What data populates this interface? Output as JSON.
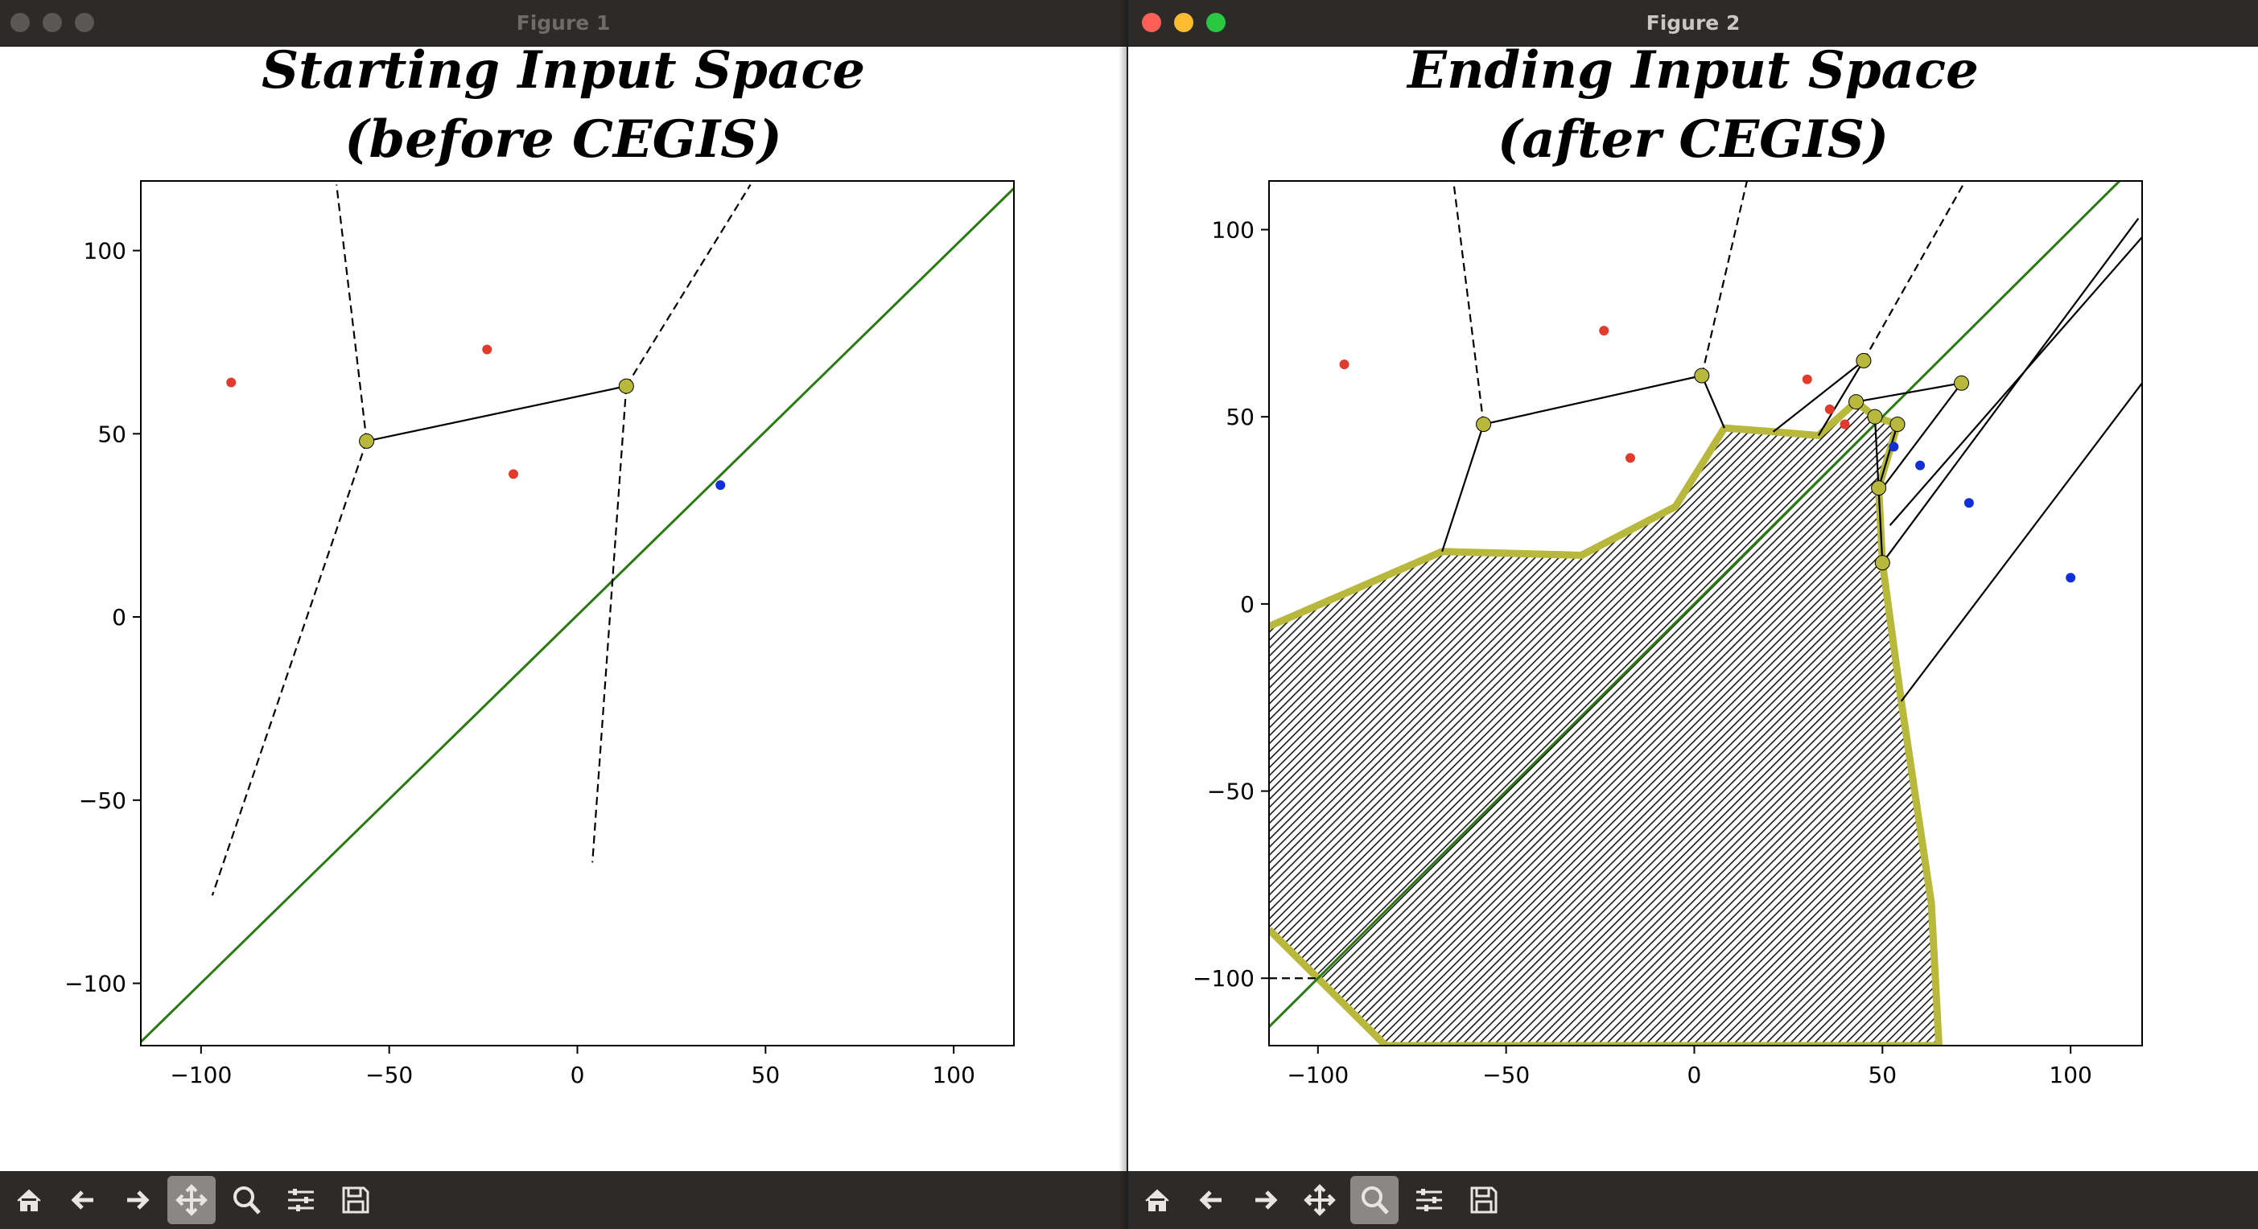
{
  "windows": [
    {
      "title": "Figure 1",
      "figure_title_line1": "Starting Input Space",
      "figure_title_line2": "(before CEGIS)"
    },
    {
      "title": "Figure 2",
      "figure_title_line1": "Ending Input Space",
      "figure_title_line2": "(after CEGIS)"
    }
  ],
  "toolbar": {
    "buttons": [
      "home-icon",
      "back-arrow-icon",
      "forward-arrow-icon",
      "pan-icon",
      "zoom-icon",
      "configure-subplots-icon",
      "save-icon"
    ],
    "active_in_figure_1": "pan-icon",
    "active_in_figure_2": "zoom-icon"
  },
  "colors": {
    "red_points": "#e03b2c",
    "blue_points": "#1230d8",
    "green_line": "#2a7a12",
    "yellow_markers": "#b8b83c"
  },
  "chart_data": [
    {
      "type": "scatter",
      "title": "Starting Input Space (before CEGIS)",
      "xlim": [
        -116,
        116
      ],
      "ylim": [
        -117,
        119
      ],
      "xticks": [
        "−100",
        "−50",
        "0",
        "50",
        "100"
      ],
      "yticks": [
        "100",
        "50",
        "0",
        "−50",
        "−100"
      ],
      "xtick_values": [
        -100,
        -50,
        0,
        50,
        100
      ],
      "ytick_values": [
        100,
        50,
        0,
        -50,
        -100
      ],
      "red_points": [
        [
          -92,
          64
        ],
        [
          -24,
          73
        ],
        [
          -17,
          39
        ]
      ],
      "blue_points": [
        [
          38,
          36
        ]
      ],
      "vertices": [
        [
          -56,
          48
        ],
        [
          13,
          63
        ]
      ],
      "solid_segments": [
        [
          [
            -56,
            48
          ],
          [
            13,
            63
          ]
        ]
      ],
      "dashed_segments": [
        [
          [
            -56,
            48
          ],
          [
            -64,
            118
          ]
        ],
        [
          [
            -56,
            48
          ],
          [
            -97,
            -76
          ]
        ],
        [
          [
            13,
            63
          ],
          [
            46,
            118
          ]
        ],
        [
          [
            13,
            63
          ],
          [
            4,
            -67
          ]
        ]
      ],
      "decision_boundary": [
        [
          -116,
          -116
        ],
        [
          116,
          117
        ]
      ]
    },
    {
      "type": "scatter",
      "title": "Ending Input Space (after CEGIS)",
      "xlim": [
        -113,
        119
      ],
      "ylim": [
        -118,
        113
      ],
      "xticks": [
        "−100",
        "−50",
        "0",
        "50",
        "100"
      ],
      "yticks": [
        "100",
        "50",
        "0",
        "−50",
        "−100"
      ],
      "xtick_values": [
        -100,
        -50,
        0,
        50,
        100
      ],
      "ytick_values": [
        100,
        50,
        0,
        -50,
        -100
      ],
      "red_points": [
        [
          -93,
          64
        ],
        [
          -24,
          73
        ],
        [
          -17,
          39
        ],
        [
          30,
          60
        ],
        [
          36,
          52
        ],
        [
          40,
          48
        ]
      ],
      "blue_points": [
        [
          53,
          42
        ],
        [
          60,
          37
        ],
        [
          73,
          27
        ],
        [
          100,
          7
        ]
      ],
      "vertices": [
        [
          -56,
          48
        ],
        [
          2,
          61
        ],
        [
          45,
          65
        ],
        [
          43,
          54
        ],
        [
          48,
          50
        ],
        [
          54,
          48
        ],
        [
          71,
          59
        ],
        [
          49,
          31
        ],
        [
          50,
          11
        ]
      ],
      "solid_segments": [
        [
          [
            -56,
            48
          ],
          [
            2,
            61
          ]
        ],
        [
          [
            -56,
            48
          ],
          [
            -67,
            14
          ]
        ],
        [
          [
            2,
            61
          ],
          [
            8,
            47
          ]
        ],
        [
          [
            45,
            65
          ],
          [
            21,
            46
          ]
        ],
        [
          [
            45,
            65
          ],
          [
            33,
            45
          ]
        ],
        [
          [
            43,
            54
          ],
          [
            71,
            59
          ]
        ],
        [
          [
            71,
            59
          ],
          [
            50,
            31
          ]
        ],
        [
          [
            48,
            50
          ],
          [
            50,
            11
          ]
        ],
        [
          [
            54,
            48
          ],
          [
            49,
            31
          ]
        ],
        [
          [
            50,
            11
          ],
          [
            118,
            103
          ]
        ],
        [
          [
            55,
            -26
          ],
          [
            119,
            59
          ]
        ],
        [
          [
            52,
            21
          ],
          [
            119,
            98
          ]
        ]
      ],
      "dashed_segments": [
        [
          [
            -56,
            48
          ],
          [
            -64,
            113
          ]
        ],
        [
          [
            2,
            61
          ],
          [
            14,
            113
          ]
        ],
        [
          [
            45,
            65
          ],
          [
            72,
            113
          ]
        ],
        [
          [
            -113,
            -100
          ],
          [
            -100,
            -100
          ]
        ]
      ],
      "decision_boundary": [
        [
          -113,
          -113
        ],
        [
          113,
          113
        ]
      ],
      "region_outline": [
        [
          -113,
          -6
        ],
        [
          -90,
          4
        ],
        [
          -67,
          14
        ],
        [
          -30,
          13
        ],
        [
          -5,
          26
        ],
        [
          8,
          47
        ],
        [
          21,
          46
        ],
        [
          33,
          45
        ],
        [
          43,
          54
        ],
        [
          48,
          50
        ],
        [
          54,
          48
        ],
        [
          49,
          31
        ],
        [
          50,
          11
        ],
        [
          55,
          -26
        ],
        [
          63,
          -80
        ],
        [
          65,
          -118
        ],
        [
          -82,
          -118
        ],
        [
          -113,
          -87
        ]
      ]
    }
  ]
}
